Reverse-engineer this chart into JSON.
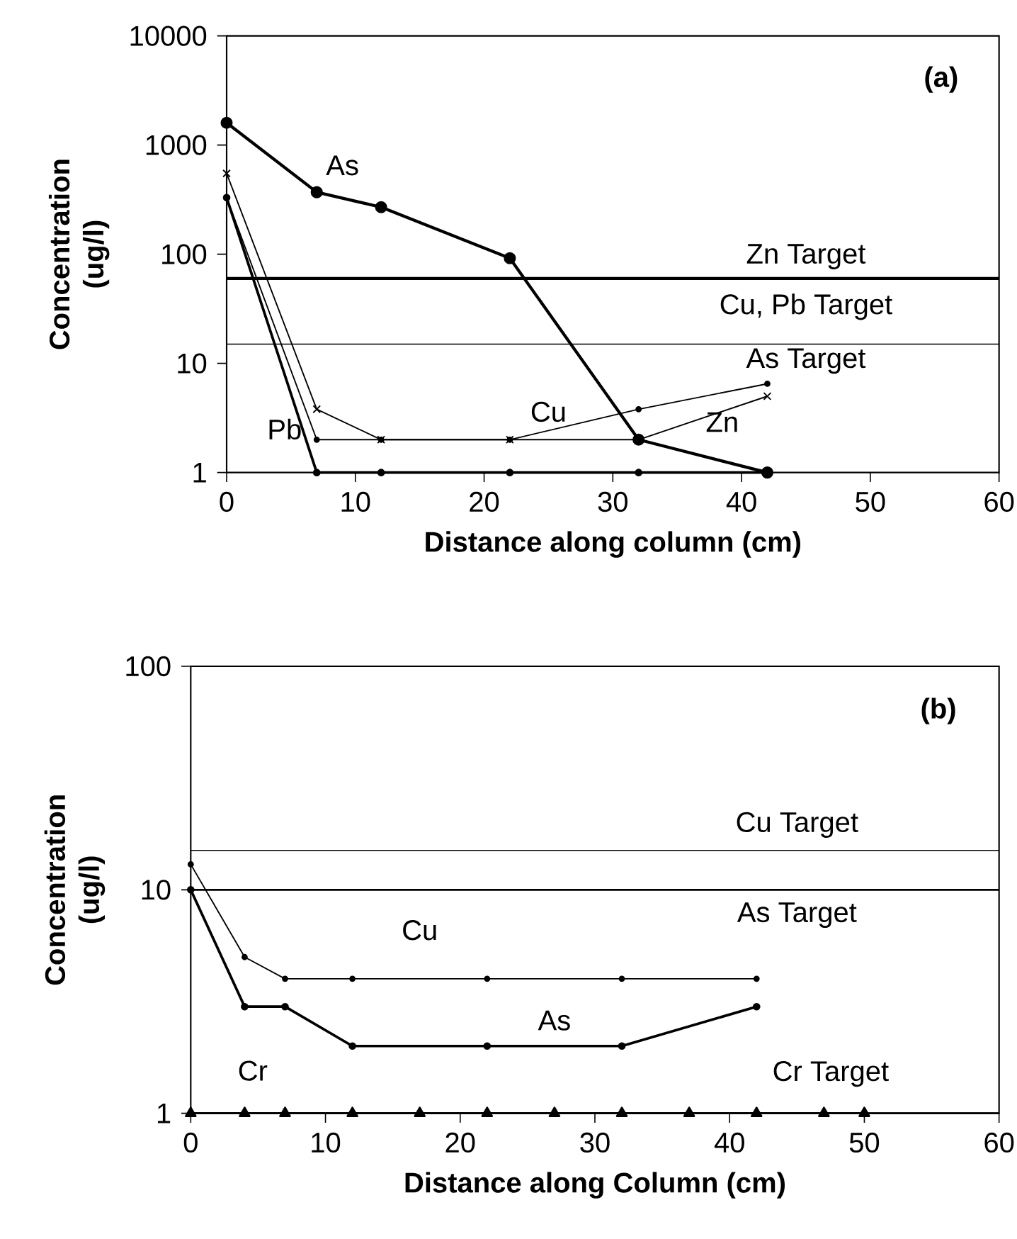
{
  "chart_data": [
    {
      "type": "line",
      "title": "(a)",
      "xlabel": "Distance along column (cm)",
      "ylabel": "Concentration (ug/l)",
      "log": "y",
      "xlim": [
        0,
        60
      ],
      "ylim": [
        1,
        10000
      ],
      "xticks": [
        0,
        10,
        20,
        30,
        40,
        50,
        60
      ],
      "yticks": [
        1,
        10,
        100,
        1000,
        10000
      ],
      "series": [
        {
          "name": "As",
          "color": "#000000",
          "marker": "circle",
          "x": [
            0,
            7,
            12,
            22,
            32,
            42
          ],
          "values": [
            1600,
            370,
            270,
            92,
            2,
            1
          ]
        },
        {
          "name": "Cu",
          "color": "#000000",
          "marker": "circle",
          "x": [
            0,
            7,
            12,
            22,
            32,
            42
          ],
          "values": [
            330,
            2,
            2,
            2,
            3.8,
            6.5
          ]
        },
        {
          "name": "Zn",
          "color": "#000000",
          "marker": "cross",
          "x": [
            0,
            7,
            12,
            22,
            32,
            42
          ],
          "values": [
            550,
            3.8,
            2,
            2,
            2,
            5
          ]
        },
        {
          "name": "Pb",
          "color": "#000000",
          "marker": "circle",
          "x": [
            0,
            7,
            12,
            22,
            32,
            42
          ],
          "values": [
            330,
            1,
            1,
            1,
            1,
            1
          ]
        }
      ],
      "ref_lines": [
        {
          "axis": "y",
          "value": 60,
          "label": "Zn Target"
        },
        {
          "axis": "y",
          "value": 15,
          "label": "Cu, Pb Target"
        }
      ],
      "annotations": [
        "As Target"
      ]
    },
    {
      "type": "line",
      "title": "(b)",
      "xlabel": "Distance along Column (cm)",
      "ylabel": "Concentration (ug/l)",
      "log": "y",
      "xlim": [
        0,
        60
      ],
      "ylim": [
        1,
        100
      ],
      "xticks": [
        0,
        10,
        20,
        30,
        40,
        50,
        60
      ],
      "yticks": [
        1,
        10,
        100
      ],
      "series": [
        {
          "name": "Cu",
          "color": "#000000",
          "marker": "circle",
          "x": [
            0,
            4,
            7,
            12,
            22,
            32,
            42
          ],
          "values": [
            13,
            5,
            4,
            4,
            4,
            4,
            4
          ]
        },
        {
          "name": "As",
          "color": "#000000",
          "marker": "circle",
          "x": [
            0,
            4,
            7,
            12,
            22,
            32,
            42
          ],
          "values": [
            10,
            3,
            3,
            2,
            2,
            2,
            3
          ]
        },
        {
          "name": "Cr",
          "color": "#000000",
          "marker": "triangle",
          "x": [
            0,
            4,
            7,
            12,
            17,
            22,
            27,
            32,
            37,
            42,
            47,
            50
          ],
          "values": [
            1,
            1,
            1,
            1,
            1,
            1,
            1,
            1,
            1,
            1,
            1,
            1
          ]
        }
      ],
      "ref_lines": [
        {
          "axis": "y",
          "value": 15,
          "label": "Cu Target"
        },
        {
          "axis": "y",
          "value": 10,
          "label": "As Target"
        },
        {
          "axis": "y",
          "value": 1,
          "label": "Cr Target"
        }
      ]
    }
  ]
}
